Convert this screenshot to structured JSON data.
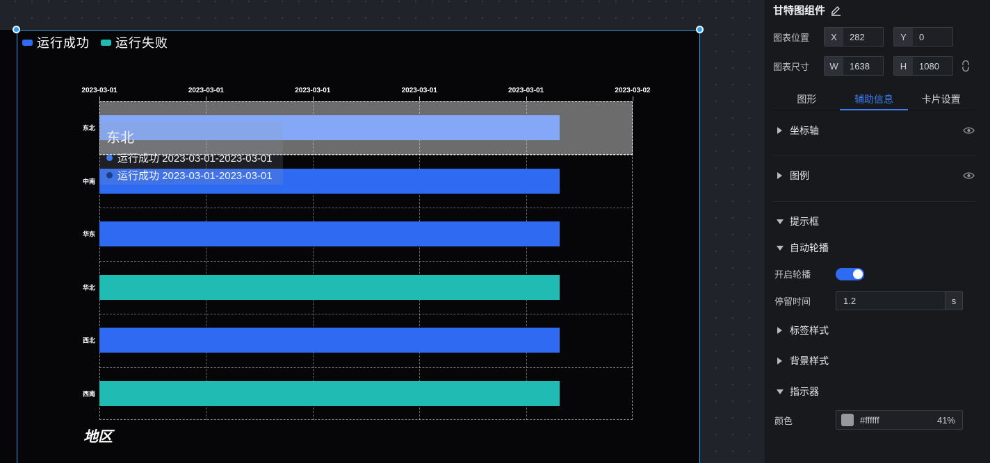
{
  "legend": {
    "items": [
      {
        "label": "运行成功",
        "color": "#2e6bf2"
      },
      {
        "label": "运行失败",
        "color": "#20bcb4"
      }
    ]
  },
  "chart_data": {
    "type": "gantt",
    "axis_name": "地区",
    "x_ticks": [
      "2023-03-01",
      "2023-03-01",
      "2023-03-01",
      "2023-03-01",
      "2023-03-01",
      "2023-03-02"
    ],
    "xlim": [
      "2023-03-01",
      "2023-03-02"
    ],
    "categories": [
      "东北",
      "中南",
      "华东",
      "华北",
      "西北",
      "西南"
    ],
    "series_colors": {
      "运行成功": "#2e6bf2",
      "运行失败": "#20bcb4"
    },
    "bars": [
      {
        "category": "东北",
        "series": "运行成功",
        "start": "2023-03-01",
        "end": "2023-03-01",
        "start_frac": 0,
        "end_frac": 0.863
      },
      {
        "category": "中南",
        "series": "运行成功",
        "start": "2023-03-01",
        "end": "2023-03-01",
        "start_frac": 0,
        "end_frac": 0.863
      },
      {
        "category": "华东",
        "series": "运行成功",
        "start": "2023-03-01",
        "end": "2023-03-01",
        "start_frac": 0,
        "end_frac": 0.863
      },
      {
        "category": "华北",
        "series": "运行失败",
        "start": "2023-03-01",
        "end": "2023-03-01",
        "start_frac": 0,
        "end_frac": 0.863
      },
      {
        "category": "西北",
        "series": "运行成功",
        "start": "2023-03-01",
        "end": "2023-03-01",
        "start_frac": 0,
        "end_frac": 0.863
      },
      {
        "category": "西南",
        "series": "运行失败",
        "start": "2023-03-01",
        "end": "2023-03-01",
        "start_frac": 0,
        "end_frac": 0.863
      }
    ],
    "highlighted_row": 0,
    "indicator_color": "rgba(255,255,255,0.41)",
    "grid": true,
    "legend_position": "top-left"
  },
  "tooltip": {
    "title": "东北",
    "rows": [
      {
        "dot_color": "#3c7ef7",
        "text": "运行成功 2023-03-01-2023-03-01"
      },
      {
        "dot_color": "#1d3c86",
        "text": "运行成功 2023-03-01-2023-03-01"
      }
    ]
  },
  "panel": {
    "title": "甘特图组件",
    "position_label": "图表位置",
    "x_label": "X",
    "x_value": "282",
    "y_label": "Y",
    "y_value": "0",
    "size_label": "图表尺寸",
    "w_label": "W",
    "w_value": "1638",
    "h_label": "H",
    "h_value": "1080",
    "tabs": [
      {
        "label": "图形"
      },
      {
        "label": "辅助信息"
      },
      {
        "label": "卡片设置"
      }
    ],
    "active_tab": "辅助信息",
    "sections": {
      "axis": "坐标轴",
      "legend": "图例",
      "tooltip": "提示框",
      "carousel": "自动轮播",
      "label_style": "标签样式",
      "bg_style": "背景样式",
      "indicator": "指示器"
    },
    "carousel_enable_label": "开启轮播",
    "carousel_enabled": true,
    "duration_label": "停留时间",
    "duration_value": "1.2",
    "duration_unit": "s",
    "color_label": "颜色",
    "color_value": "#ffffff",
    "color_opacity": "41%"
  },
  "accent_colors": {
    "selection_blue": "#3f9df2",
    "tab_active_blue": "#3f7ef7",
    "toggle_blue": "#2e6bf2"
  }
}
